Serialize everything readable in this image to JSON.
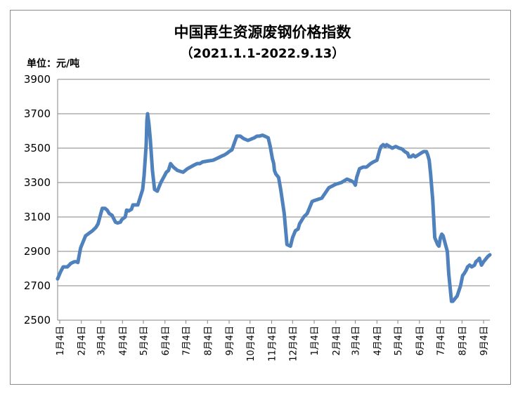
{
  "chart_data": {
    "type": "line",
    "title": "中国再生资源废钢价格指数",
    "subtitle": "（2021.1.1-2022.9.13）",
    "unit_label": "单位：元/吨",
    "ylim": [
      2500,
      3900
    ],
    "yticks": [
      2500,
      2700,
      2900,
      3100,
      3300,
      3500,
      3700,
      3900
    ],
    "grid": true,
    "line_color": "#4f81bd",
    "xlim": [
      "2021-01-01",
      "2022-09-13"
    ],
    "xticks": [
      {
        "label": "1月4日",
        "date": "2021-01-04"
      },
      {
        "label": "2月4日",
        "date": "2021-02-04"
      },
      {
        "label": "3月4日",
        "date": "2021-03-04"
      },
      {
        "label": "4月4日",
        "date": "2021-04-04"
      },
      {
        "label": "5月4日",
        "date": "2021-05-04"
      },
      {
        "label": "6月4日",
        "date": "2021-06-04"
      },
      {
        "label": "7月4日",
        "date": "2021-07-04"
      },
      {
        "label": "8月4日",
        "date": "2021-08-04"
      },
      {
        "label": "9月4日",
        "date": "2021-09-04"
      },
      {
        "label": "10月4日",
        "date": "2021-10-04"
      },
      {
        "label": "11月4日",
        "date": "2021-11-04"
      },
      {
        "label": "12月4日",
        "date": "2021-12-04"
      },
      {
        "label": "1月4日",
        "date": "2022-01-04"
      },
      {
        "label": "2月4日",
        "date": "2022-02-04"
      },
      {
        "label": "3月4日",
        "date": "2022-03-04"
      },
      {
        "label": "4月4日",
        "date": "2022-04-04"
      },
      {
        "label": "5月4日",
        "date": "2022-05-04"
      },
      {
        "label": "6月4日",
        "date": "2022-06-04"
      },
      {
        "label": "7月4日",
        "date": "2022-07-04"
      },
      {
        "label": "8月4日",
        "date": "2022-08-04"
      },
      {
        "label": "9月4日",
        "date": "2022-09-04"
      }
    ],
    "series": [
      {
        "x": [
          "2021-01-01",
          "2021-01-05",
          "2021-01-09",
          "2021-01-15",
          "2021-01-20",
          "2021-01-25",
          "2021-01-28",
          "2021-01-30",
          "2021-02-01",
          "2021-02-03",
          "2021-02-10",
          "2021-02-20",
          "2021-02-25",
          "2021-02-28",
          "2021-03-02",
          "2021-03-06",
          "2021-03-10",
          "2021-03-13",
          "2021-03-16",
          "2021-03-20",
          "2021-03-25",
          "2021-03-28",
          "2021-04-01",
          "2021-04-03",
          "2021-04-08",
          "2021-04-10",
          "2021-04-13",
          "2021-04-17",
          "2021-04-19",
          "2021-04-26",
          "2021-05-03",
          "2021-05-05",
          "2021-05-06",
          "2021-05-07",
          "2021-05-08",
          "2021-05-09",
          "2021-05-10",
          "2021-05-12",
          "2021-05-14",
          "2021-05-15",
          "2021-05-17",
          "2021-05-20",
          "2021-05-24",
          "2021-05-26",
          "2021-05-29",
          "2021-06-02",
          "2021-06-06",
          "2021-06-09",
          "2021-06-12",
          "2021-06-16",
          "2021-06-22",
          "2021-06-30",
          "2021-07-06",
          "2021-07-15",
          "2021-07-20",
          "2021-07-24",
          "2021-07-28",
          "2021-08-04",
          "2021-08-12",
          "2021-08-20",
          "2021-08-25",
          "2021-08-28",
          "2021-09-01",
          "2021-09-04",
          "2021-09-08",
          "2021-09-15",
          "2021-09-20",
          "2021-09-25",
          "2021-10-01",
          "2021-10-10",
          "2021-10-14",
          "2021-10-17",
          "2021-10-22",
          "2021-10-25",
          "2021-10-30",
          "2021-11-02",
          "2021-11-05",
          "2021-11-07",
          "2021-11-08",
          "2021-11-10",
          "2021-11-14",
          "2021-11-17",
          "2021-11-22",
          "2021-11-26",
          "2021-12-01",
          "2021-12-04",
          "2021-12-08",
          "2021-12-12",
          "2021-12-14",
          "2021-12-20",
          "2021-12-25",
          "2021-12-28",
          "2022-01-01",
          "2022-01-04",
          "2022-01-15",
          "2022-01-25",
          "2022-02-04",
          "2022-02-12",
          "2022-02-20",
          "2022-02-26",
          "2022-03-02",
          "2022-03-04",
          "2022-03-06",
          "2022-03-10",
          "2022-03-15",
          "2022-03-20",
          "2022-03-26",
          "2022-03-30",
          "2022-04-04",
          "2022-04-08",
          "2022-04-10",
          "2022-04-13",
          "2022-04-16",
          "2022-04-18",
          "2022-04-22",
          "2022-04-26",
          "2022-05-01",
          "2022-05-06",
          "2022-05-10",
          "2022-05-14",
          "2022-05-18",
          "2022-05-20",
          "2022-05-23",
          "2022-05-26",
          "2022-05-29",
          "2022-06-02",
          "2022-06-06",
          "2022-06-10",
          "2022-06-14",
          "2022-06-16",
          "2022-06-18",
          "2022-06-20",
          "2022-06-23",
          "2022-06-26",
          "2022-06-30",
          "2022-07-02",
          "2022-07-04",
          "2022-07-06",
          "2022-07-08",
          "2022-07-10",
          "2022-07-12",
          "2022-07-14",
          "2022-07-16",
          "2022-07-20",
          "2022-07-22",
          "2022-07-26",
          "2022-07-28",
          "2022-08-02",
          "2022-08-05",
          "2022-08-07",
          "2022-08-10",
          "2022-08-12",
          "2022-08-15",
          "2022-08-18",
          "2022-08-22",
          "2022-08-24",
          "2022-08-27",
          "2022-08-29",
          "2022-09-01",
          "2022-09-04",
          "2022-09-06",
          "2022-09-10",
          "2022-09-13"
        ],
        "y": [
          2740,
          2780,
          2810,
          2810,
          2830,
          2840,
          2840,
          2835,
          2880,
          2920,
          2990,
          3020,
          3040,
          3060,
          3090,
          3150,
          3150,
          3140,
          3120,
          3110,
          3070,
          3065,
          3070,
          3085,
          3100,
          3140,
          3135,
          3145,
          3170,
          3170,
          3260,
          3340,
          3400,
          3460,
          3520,
          3660,
          3700,
          3640,
          3550,
          3490,
          3370,
          3260,
          3250,
          3270,
          3300,
          3330,
          3360,
          3370,
          3410,
          3390,
          3370,
          3360,
          3380,
          3400,
          3410,
          3410,
          3420,
          3425,
          3430,
          3445,
          3455,
          3460,
          3470,
          3480,
          3490,
          3570,
          3570,
          3555,
          3545,
          3560,
          3570,
          3570,
          3575,
          3570,
          3560,
          3510,
          3440,
          3410,
          3370,
          3350,
          3330,
          3260,
          3120,
          2940,
          2930,
          2980,
          3020,
          3030,
          3060,
          3100,
          3120,
          3150,
          3190,
          3195,
          3210,
          3270,
          3290,
          3300,
          3320,
          3310,
          3300,
          3285,
          3330,
          3380,
          3390,
          3390,
          3410,
          3420,
          3430,
          3490,
          3510,
          3520,
          3510,
          3520,
          3510,
          3500,
          3510,
          3500,
          3495,
          3480,
          3470,
          3450,
          3450,
          3460,
          3450,
          3460,
          3470,
          3480,
          3480,
          3460,
          3430,
          3350,
          3200,
          2980,
          2940,
          2930,
          2980,
          3000,
          2990,
          2960,
          2930,
          2900,
          2770,
          2610,
          2610,
          2630,
          2640,
          2700,
          2760,
          2770,
          2790,
          2810,
          2820,
          2810,
          2820,
          2840,
          2850,
          2860,
          2820,
          2840,
          2850,
          2870,
          2880
        ]
      }
    ]
  }
}
